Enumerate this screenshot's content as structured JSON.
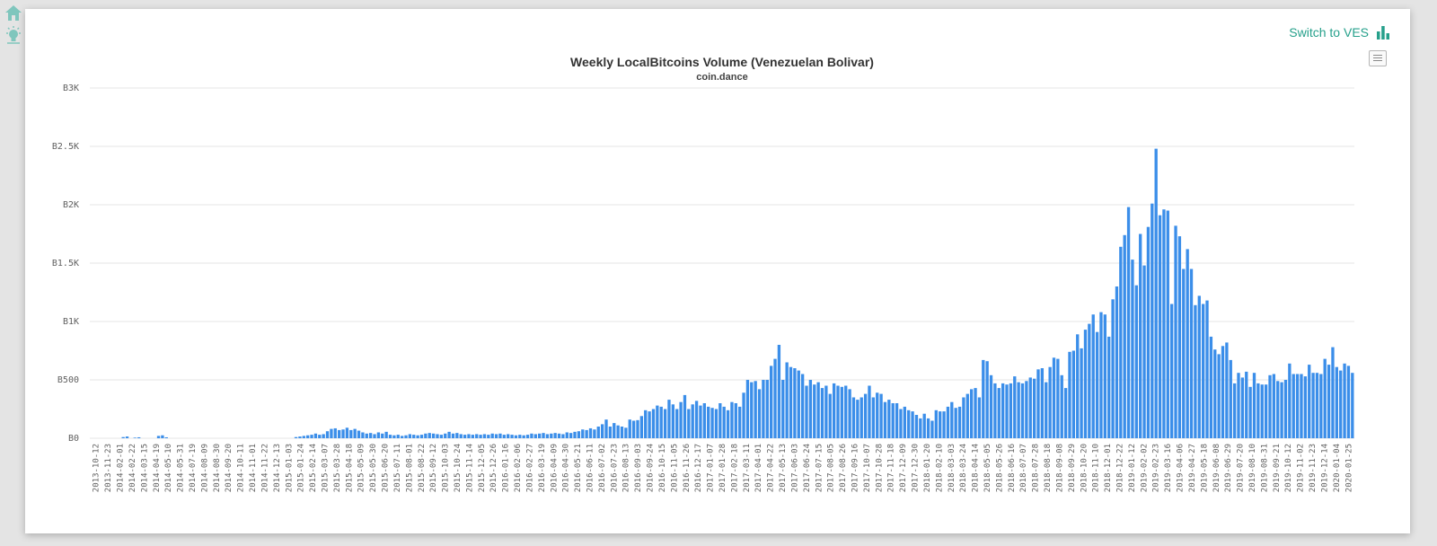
{
  "sidebar": {
    "icons": [
      "home-icon",
      "lightbulb-icon"
    ]
  },
  "toolbar": {
    "switch_label": "Switch to VES",
    "switch_icon": "bar-chart-icon",
    "menu_icon": "hamburger-menu-icon"
  },
  "colors": {
    "bar": "#3b8ee9",
    "accent": "#26a08b",
    "grid": "#e6e6e6"
  },
  "chart_data": {
    "type": "bar",
    "title": "Weekly LocalBitcoins Volume (Venezuelan Bolivar)",
    "subtitle": "coin.dance",
    "xlabel": "",
    "ylabel": "",
    "ylim": [
      0,
      3000
    ],
    "y_ticks": [
      0,
      500,
      1000,
      1500,
      2000,
      2500,
      3000
    ],
    "y_tick_labels": [
      "B0",
      "B500",
      "B1K",
      "B1.5K",
      "B2K",
      "B2.5K",
      "B3K"
    ],
    "x_tick_labels": [
      "2013-10-12",
      "2013-11-23",
      "2014-02-01",
      "2014-02-22",
      "2014-03-15",
      "2014-04-19",
      "2014-05-10",
      "2014-05-31",
      "2014-07-19",
      "2014-08-09",
      "2014-08-30",
      "2014-09-20",
      "2014-10-11",
      "2014-11-01",
      "2014-11-22",
      "2014-12-13",
      "2015-01-03",
      "2015-01-24",
      "2015-02-14",
      "2015-03-07",
      "2015-03-28",
      "2015-04-18",
      "2015-05-09",
      "2015-05-30",
      "2015-06-20",
      "2015-07-11",
      "2015-08-01",
      "2015-08-22",
      "2015-09-12",
      "2015-10-03",
      "2015-10-24",
      "2015-11-14",
      "2015-12-05",
      "2015-12-26",
      "2016-01-16",
      "2016-02-06",
      "2016-02-27",
      "2016-03-19",
      "2016-04-09",
      "2016-04-30",
      "2016-05-21",
      "2016-06-11",
      "2016-07-02",
      "2016-07-23",
      "2016-08-13",
      "2016-09-03",
      "2016-09-24",
      "2016-10-15",
      "2016-11-05",
      "2016-11-26",
      "2016-12-17",
      "2017-01-07",
      "2017-01-28",
      "2017-02-18",
      "2017-03-11",
      "2017-04-01",
      "2017-04-22",
      "2017-05-13",
      "2017-06-03",
      "2017-06-24",
      "2017-07-15",
      "2017-08-05",
      "2017-08-26",
      "2017-09-16",
      "2017-10-07",
      "2017-10-28",
      "2017-11-18",
      "2017-12-09",
      "2017-12-30",
      "2018-01-20",
      "2018-02-10",
      "2018-03-03",
      "2018-03-24",
      "2018-04-14",
      "2018-05-05",
      "2018-05-26",
      "2018-06-16",
      "2018-07-07",
      "2018-07-28",
      "2018-08-18",
      "2018-09-08",
      "2018-09-29",
      "2018-10-20",
      "2018-11-10",
      "2018-12-01",
      "2018-12-22",
      "2019-01-12",
      "2019-02-02",
      "2019-02-23",
      "2019-03-16",
      "2019-04-06",
      "2019-04-27",
      "2019-05-18",
      "2019-06-08",
      "2019-06-29",
      "2019-07-20",
      "2019-08-10",
      "2019-08-31",
      "2019-09-21",
      "2019-10-12",
      "2019-11-02",
      "2019-11-23",
      "2019-12-14",
      "2020-01-04",
      "2020-01-25"
    ],
    "values": [
      0,
      0,
      0,
      0,
      0,
      0,
      0,
      0,
      10,
      15,
      0,
      5,
      8,
      0,
      0,
      0,
      0,
      20,
      25,
      8,
      0,
      0,
      0,
      0,
      0,
      0,
      0,
      0,
      0,
      0,
      0,
      0,
      0,
      0,
      0,
      0,
      0,
      0,
      0,
      0,
      0,
      0,
      0,
      0,
      0,
      0,
      0,
      0,
      0,
      0,
      0,
      0,
      10,
      15,
      20,
      25,
      30,
      40,
      30,
      35,
      60,
      80,
      85,
      70,
      75,
      90,
      70,
      80,
      65,
      50,
      40,
      45,
      35,
      50,
      40,
      55,
      30,
      25,
      30,
      20,
      25,
      35,
      30,
      25,
      30,
      40,
      45,
      40,
      35,
      30,
      40,
      55,
      40,
      45,
      35,
      30,
      35,
      30,
      35,
      30,
      35,
      30,
      40,
      35,
      40,
      30,
      35,
      30,
      25,
      30,
      25,
      30,
      40,
      35,
      40,
      45,
      35,
      40,
      45,
      40,
      35,
      50,
      45,
      55,
      60,
      75,
      70,
      85,
      75,
      100,
      120,
      160,
      100,
      130,
      110,
      100,
      90,
      160,
      150,
      155,
      190,
      240,
      230,
      250,
      280,
      270,
      250,
      330,
      290,
      250,
      310,
      370,
      250,
      290,
      320,
      280,
      300,
      270,
      260,
      250,
      300,
      270,
      240,
      310,
      300,
      270,
      390,
      500,
      480,
      490,
      420,
      500,
      500,
      620,
      680,
      800,
      500,
      650,
      610,
      600,
      580,
      550,
      450,
      500,
      460,
      480,
      430,
      450,
      380,
      470,
      450,
      440,
      450,
      420,
      350,
      330,
      350,
      380,
      450,
      350,
      390,
      380,
      310,
      330,
      300,
      300,
      250,
      270,
      240,
      230,
      200,
      170,
      210,
      170,
      150,
      240,
      230,
      230,
      270,
      310,
      260,
      270,
      350,
      380,
      420,
      430,
      350,
      670,
      660,
      540,
      470,
      430,
      470,
      460,
      470,
      530,
      480,
      470,
      490,
      520,
      510,
      590,
      600,
      480,
      610,
      690,
      680,
      540,
      430,
      740,
      750,
      890,
      770,
      930,
      980,
      1060,
      910,
      1080,
      1060,
      870,
      1190,
      1300,
      1640,
      1740,
      1980,
      1530,
      1310,
      1750,
      1480,
      1810,
      2010,
      2480,
      1910,
      1960,
      1950,
      1150,
      1820,
      1730,
      1450,
      1620,
      1450,
      1140,
      1220,
      1150,
      1180,
      870,
      760,
      720,
      790,
      820,
      670,
      470,
      560,
      520,
      570,
      440,
      560,
      470,
      460,
      460,
      540,
      550,
      490,
      480,
      500,
      640,
      550,
      550,
      550,
      530,
      630,
      560,
      560,
      550,
      680,
      630,
      780,
      610,
      580,
      640,
      620,
      560
    ]
  }
}
